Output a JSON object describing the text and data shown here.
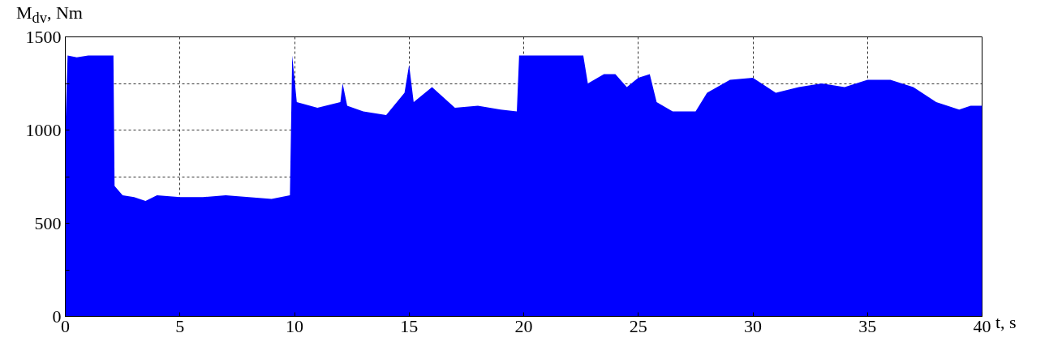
{
  "chart_data": {
    "type": "area",
    "ylabel": "M$_{dv}$, Nm",
    "xlabel": "t, s",
    "x": [
      0,
      0.1,
      0.5,
      1,
      1.5,
      2.1,
      2.15,
      2.5,
      3,
      3.5,
      4,
      5,
      6,
      7,
      8,
      9,
      9.8,
      9.9,
      10.1,
      11,
      12,
      12.1,
      12.3,
      13,
      14,
      14.8,
      15,
      15.2,
      16,
      17,
      18,
      19,
      19.7,
      19.8,
      21,
      22.6,
      22.8,
      23.5,
      24,
      24.5,
      25,
      25.5,
      25.8,
      26.5,
      27.5,
      28,
      29,
      30,
      31,
      32,
      33,
      34,
      35,
      36,
      37,
      38,
      39,
      39.5,
      40
    ],
    "series": [
      {
        "color": "#0000ff",
        "values": [
          1000,
          1400,
          1390,
          1400,
          1400,
          1400,
          700,
          650,
          640,
          620,
          650,
          640,
          640,
          650,
          640,
          630,
          650,
          1400,
          1150,
          1120,
          1150,
          1250,
          1130,
          1100,
          1080,
          1200,
          1350,
          1150,
          1230,
          1120,
          1130,
          1110,
          1100,
          1400,
          1400,
          1400,
          1250,
          1300,
          1300,
          1230,
          1280,
          1300,
          1150,
          1100,
          1100,
          1200,
          1270,
          1280,
          1200,
          1230,
          1250,
          1230,
          1270,
          1270,
          1230,
          1150,
          1110,
          1130,
          1130
        ]
      }
    ],
    "xlim": [
      0,
      40
    ],
    "xticks": [
      0,
      5,
      10,
      15,
      20,
      25,
      30,
      35,
      40
    ],
    "ylim": [
      0,
      1500
    ],
    "yticks": [
      0,
      {
        "value": 250,
        "label": null
      },
      500,
      {
        "value": 750,
        "label": null
      },
      1000,
      {
        "value": 1250,
        "label": null
      },
      1500
    ],
    "grid": true
  }
}
